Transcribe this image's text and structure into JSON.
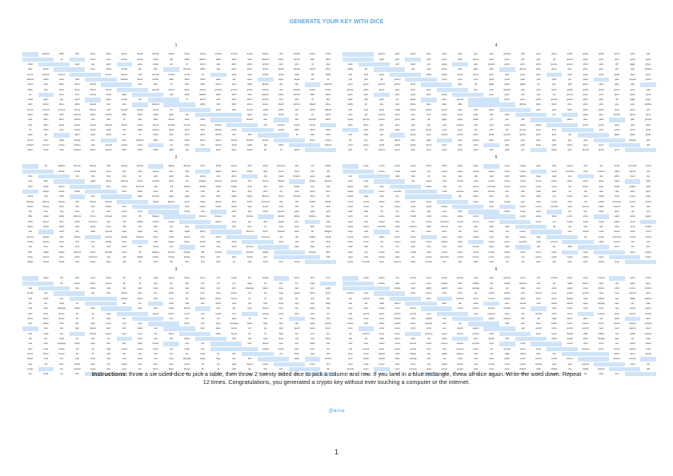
{
  "title": "GENERATE YOUR KEY WITH DICE",
  "tables": [
    {
      "number": "1",
      "words": [
        "abandon",
        "ability",
        "able",
        "about",
        "above",
        "absent",
        "absorb",
        "abstract",
        "absurd",
        "abuse",
        "access",
        "accident",
        "account",
        "accuse",
        "achieve",
        "acid",
        "acoustic",
        "acquire",
        "across",
        "act",
        "action",
        "actor",
        "actress",
        "actual",
        "adapt",
        "add",
        "addict",
        "address",
        "adjust",
        "admit",
        "adult",
        "advance",
        "advice",
        "aerobic",
        "affair",
        "afford",
        "afraid",
        "again",
        "age",
        "agent",
        "agree",
        "ahead",
        "aim",
        "air",
        "airport",
        "aisle",
        "alarm",
        "album",
        "alcohol",
        "alert",
        "alien",
        "all",
        "alley",
        "allow",
        "almost",
        "alone",
        "alpha",
        "already",
        "also",
        "alter"
      ]
    },
    {
      "number": "2",
      "words": [
        "differ",
        "digital",
        "dignity",
        "dilemma",
        "dinner",
        "dinosaur",
        "direct",
        "dirt",
        "disagree",
        "discover",
        "disease",
        "dish",
        "dismiss",
        "disorder",
        "display",
        "distance",
        "divert",
        "divide",
        "divorce",
        "dizzy",
        "doctor",
        "document",
        "dog",
        "doll",
        "dolphin",
        "domain",
        "donate",
        "donkey",
        "donor",
        "door",
        "dose",
        "double",
        "dove",
        "draft",
        "dragon",
        "drama",
        "drastic",
        "draw",
        "dream",
        "dress",
        "drift",
        "drill",
        "drink",
        "drip",
        "drive",
        "drop",
        "drum",
        "dry",
        "duck",
        "dumb",
        "dune",
        "during",
        "dust",
        "dutch",
        "duty",
        "dwarf",
        "dynamic",
        "eager",
        "eagle",
        "early"
      ]
    },
    {
      "number": "3",
      "words": [
        "lamp",
        "language",
        "laptop",
        "large",
        "later",
        "latin",
        "laugh",
        "laundry",
        "lava",
        "law",
        "lawn",
        "lawsuit",
        "layer",
        "lazy",
        "leader",
        "leaf",
        "learn",
        "leave",
        "lecture",
        "left",
        "leg",
        "legal",
        "legend",
        "leisure",
        "lemon",
        "lend",
        "length",
        "lens",
        "leopard",
        "lesson",
        "letter",
        "level",
        "liar",
        "liberty",
        "library",
        "license",
        "life",
        "lift",
        "light",
        "like",
        "limb",
        "limit",
        "link",
        "lion",
        "liquid",
        "list",
        "little",
        "live",
        "lizard",
        "load",
        "loan",
        "lobster",
        "local",
        "lock",
        "logic",
        "lonely",
        "long",
        "loop",
        "lottery",
        "loud"
      ]
    },
    {
      "number": "4",
      "words": [
        "gauge",
        "gaze",
        "general",
        "genius",
        "genre",
        "gentle",
        "genuine",
        "gesture",
        "ghost",
        "giant",
        "gift",
        "giggle",
        "ginger",
        "giraffe",
        "girl",
        "give",
        "glad",
        "glance",
        "glare",
        "glass",
        "glide",
        "glimpse",
        "globe",
        "gloom",
        "glory",
        "glove",
        "glow",
        "glue",
        "goat",
        "goddess",
        "gold",
        "good",
        "goose",
        "gorilla",
        "gospel",
        "gossip",
        "govern",
        "gown",
        "grab",
        "grace",
        "grain",
        "grant",
        "grape",
        "grass",
        "gravity",
        "great",
        "green",
        "grid",
        "grief",
        "grit",
        "grocery",
        "group",
        "grow",
        "grunt",
        "guard",
        "guess",
        "guide",
        "guilt",
        "guitar",
        "gun"
      ]
    },
    {
      "number": "5",
      "words": [
        "rabbit",
        "raccoon",
        "race",
        "rack",
        "radar",
        "radio",
        "rail",
        "rain",
        "raise",
        "rally",
        "ramp",
        "ranch",
        "random",
        "range",
        "rapid",
        "rare",
        "rate",
        "rather",
        "raven",
        "raw",
        "razor",
        "ready",
        "real",
        "reason",
        "rebel",
        "rebuild",
        "recall",
        "receive",
        "recipe",
        "record",
        "recycle",
        "reduce",
        "reflect",
        "reform",
        "refuse",
        "region",
        "regret",
        "regular",
        "reject",
        "relax",
        "release",
        "relief",
        "rely",
        "remain",
        "remember",
        "remind",
        "remove",
        "render",
        "renew",
        "rent",
        "reopen",
        "repair",
        "repeat",
        "replace",
        "report",
        "require",
        "rescue",
        "resemble",
        "resist",
        "resource"
      ]
    },
    {
      "number": "6",
      "words": [
        "sad",
        "saddle",
        "sadness",
        "safe",
        "sail",
        "salad",
        "salmon",
        "salon",
        "salt",
        "salute",
        "same",
        "sample",
        "sand",
        "satisfy",
        "satoshi",
        "sauce",
        "sausage",
        "save",
        "say",
        "scale",
        "scan",
        "scare",
        "scatter",
        "scene",
        "scheme",
        "school",
        "science",
        "scissors",
        "scorpion",
        "scout",
        "scrap",
        "screen",
        "script",
        "scrub",
        "sea",
        "search",
        "season",
        "seat",
        "second",
        "secret",
        "section",
        "security",
        "seed",
        "seek",
        "segment",
        "select",
        "sell",
        "seminar",
        "senior",
        "sense",
        "sentence",
        "series",
        "service",
        "session",
        "settle",
        "setup",
        "seven",
        "shadow",
        "shaft",
        "shallow"
      ]
    }
  ],
  "instructions": {
    "label": "Instructions:",
    "text": " throw a six sided dice to pick a table, then throw 2 twenty sided dice to pick a column and row. If you land in a blue rectangle, throw all dice again. Write the word down. Repeat 12 times. Congratulations, you generated a crypto key without ever touching a computer or the internet."
  },
  "handle": "@avsa",
  "page_number": "1"
}
